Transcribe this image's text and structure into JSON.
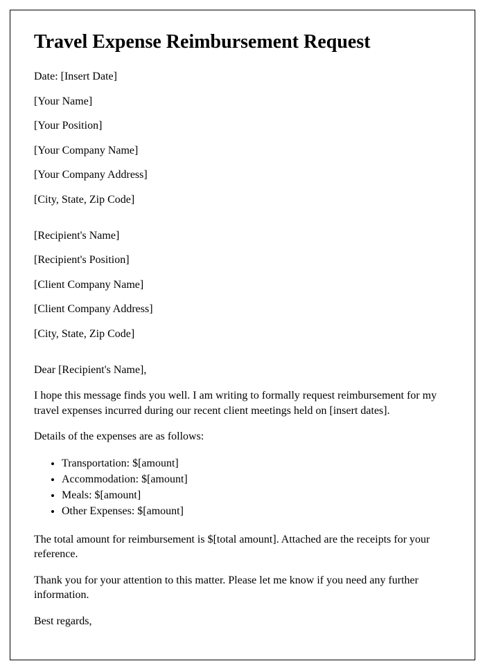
{
  "title": "Travel Expense Reimbursement Request",
  "sender": {
    "date": "Date: [Insert Date]",
    "name": "[Your Name]",
    "position": "[Your Position]",
    "company": "[Your Company Name]",
    "address": "[Your Company Address]",
    "city": "[City, State, Zip Code]"
  },
  "recipient": {
    "name": "[Recipient's Name]",
    "position": "[Recipient's Position]",
    "company": "[Client Company Name]",
    "address": "[Client Company Address]",
    "city": "[City, State, Zip Code]"
  },
  "body": {
    "salutation": "Dear [Recipient's Name],",
    "intro": "I hope this message finds you well. I am writing to formally request reimbursement for my travel expenses incurred during our recent client meetings held on [insert dates].",
    "details_lead": "Details of the expenses are as follows:",
    "items": {
      "transportation": "Transportation: $[amount]",
      "accommodation": "Accommodation: $[amount]",
      "meals": "Meals: $[amount]",
      "other": "Other Expenses: $[amount]"
    },
    "total": "The total amount for reimbursement is $[total amount]. Attached are the receipts for your reference.",
    "thanks": "Thank you for your attention to this matter. Please let me know if you need any further information.",
    "closing": "Best regards,"
  }
}
